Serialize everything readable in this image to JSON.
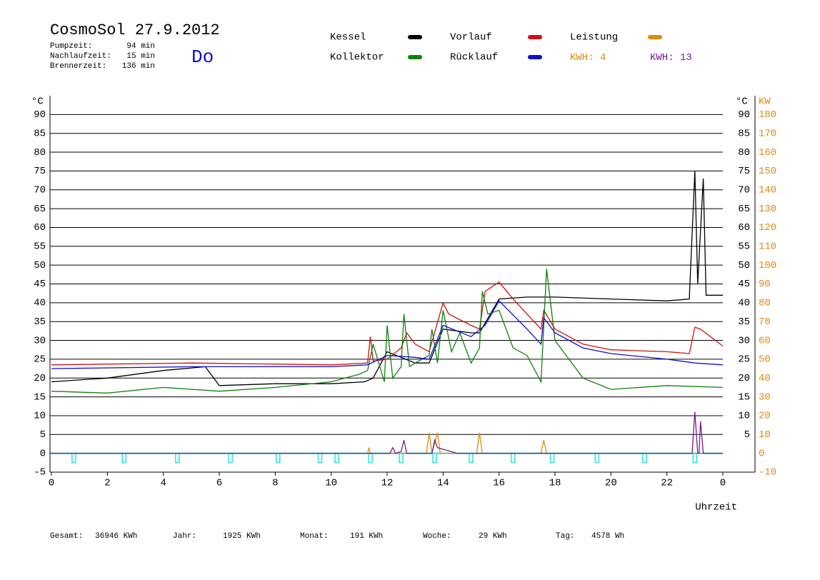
{
  "header": {
    "title": "CosmoSol 27.9.2012",
    "day": "Do",
    "stats": [
      {
        "label": "Pumpzeit:",
        "value": "94 min"
      },
      {
        "label": "Nachlaufzeit:",
        "value": "15 min"
      },
      {
        "label": "Brennerzeit:",
        "value": "136 min"
      }
    ]
  },
  "footer": [
    {
      "label": "Gesamt:",
      "value": "36946 KWh"
    },
    {
      "label": "Jahr:",
      "value": "1925 KWh"
    },
    {
      "label": "Monat:",
      "value": "191 KWh"
    },
    {
      "label": "Woche:",
      "value": "29 KWh"
    },
    {
      "label": "Tag:",
      "value": "4578 Wh"
    }
  ],
  "chart_data": {
    "type": "line",
    "xlabel": "Uhrzeit",
    "ylabel": "°C",
    "y2label": "KW",
    "y_right_label": "°C",
    "xlim": [
      0,
      24
    ],
    "xticks": [
      0,
      2,
      4,
      6,
      8,
      10,
      12,
      14,
      16,
      18,
      20,
      22,
      {
        "value": 24,
        "label": "0"
      }
    ],
    "ylim": [
      -5,
      95
    ],
    "yticks": [
      -5,
      0,
      5,
      10,
      15,
      20,
      25,
      30,
      35,
      40,
      45,
      50,
      55,
      60,
      65,
      70,
      75,
      80,
      85,
      90
    ],
    "y2lim": [
      -10,
      190
    ],
    "y2ticks": [
      -10,
      0,
      10,
      20,
      30,
      40,
      50,
      60,
      70,
      80,
      90,
      100,
      110,
      120,
      130,
      140,
      150,
      160,
      170,
      180
    ],
    "grid": true,
    "kwh": [
      {
        "label": "KWH:",
        "value": 4,
        "color": "#e08a10"
      },
      {
        "label": "KWH:",
        "value": 13,
        "color": "#7a1a8a"
      }
    ],
    "pump_color": "#30e0e0",
    "pump_marks": [
      0.8,
      2.6,
      4.5,
      6.4,
      8.1,
      9.6,
      10.2,
      11.4,
      12.5,
      13.7,
      15.0,
      16.5,
      17.9,
      19.5,
      21.2,
      23.0
    ],
    "series": [
      {
        "name": "Kessel",
        "color": "#000000",
        "x": [
          0,
          2,
          4,
          5.5,
          6,
          8,
          10,
          11.2,
          11.5,
          12,
          13,
          13.5,
          14,
          15,
          15.3,
          16,
          17,
          18,
          20,
          22,
          22.8,
          23,
          23.1,
          23.3,
          23.4,
          24
        ],
        "values": [
          19,
          20,
          22,
          23,
          18,
          18.5,
          18.5,
          19,
          20,
          27,
          24,
          24,
          33,
          32,
          32,
          41,
          41.5,
          41.5,
          41,
          40.5,
          41,
          75,
          45,
          73,
          42,
          42
        ]
      },
      {
        "name": "Vorlauf",
        "color": "#d01010",
        "x": [
          0,
          5,
          10,
          11.3,
          11.4,
          11.5,
          12,
          12.5,
          12.7,
          13,
          13.5,
          14,
          14.2,
          15,
          15.3,
          15.5,
          16,
          16.5,
          17.5,
          17.6,
          18,
          19,
          20,
          22,
          22.8,
          23,
          23.2,
          24
        ],
        "values": [
          23.5,
          24,
          23.5,
          24,
          31,
          24.5,
          25,
          28,
          32,
          29,
          27,
          40,
          37,
          34,
          33,
          43,
          45.5,
          41,
          33,
          38,
          33,
          29,
          27.5,
          27,
          26.5,
          33.5,
          33,
          28.5
        ]
      },
      {
        "name": "Leistung",
        "color": "#e08a10",
        "axis": "y2",
        "x": [
          0,
          11.3,
          11.35,
          11.4,
          13.4,
          13.5,
          13.6,
          13.8,
          13.9,
          15.2,
          15.3,
          15.4,
          17.5,
          17.6,
          17.7,
          24
        ],
        "values": [
          0,
          0,
          3,
          0,
          0,
          11,
          0,
          11,
          0,
          0,
          11,
          0,
          0,
          7,
          0,
          0
        ]
      },
      {
        "name": "Kollektor",
        "color": "#108010",
        "x": [
          0,
          2,
          4,
          6,
          8,
          10,
          11,
          11.3,
          11.5,
          11.9,
          12,
          12.2,
          12.5,
          12.6,
          12.8,
          13,
          13.5,
          13.6,
          13.8,
          14,
          14.3,
          14.6,
          15,
          15.3,
          15.4,
          15.6,
          16,
          16.5,
          17,
          17.5,
          17.7,
          18,
          19,
          20,
          22,
          24
        ],
        "values": [
          16.5,
          16,
          17.5,
          16.5,
          17.5,
          19,
          21,
          22,
          29,
          19,
          34,
          20,
          23,
          37,
          23,
          24,
          26,
          33,
          24,
          38,
          27,
          32,
          24,
          28,
          43,
          37,
          38,
          28,
          26,
          19,
          49,
          30,
          20,
          17,
          18,
          17.5
        ]
      },
      {
        "name": "Rücklauf",
        "color": "#1010c8",
        "x": [
          0,
          5,
          10,
          11.3,
          12,
          13,
          13.5,
          14,
          15,
          15.5,
          16,
          17,
          17.5,
          17.6,
          18,
          19,
          20,
          22,
          23,
          24
        ],
        "values": [
          22.5,
          23,
          23,
          23.5,
          26,
          25.5,
          25,
          34,
          31,
          34,
          40.5,
          33,
          29,
          36,
          32,
          28,
          26.5,
          25,
          24,
          23.5
        ]
      },
      {
        "color": "#7a1a8a",
        "axis": "y2",
        "x": [
          0,
          12.1,
          12.2,
          12.3,
          12.5,
          12.6,
          12.7,
          13.6,
          13.7,
          13.8,
          14.5,
          22.9,
          23.0,
          23.1,
          23.15,
          23.2,
          23.3,
          24
        ],
        "values": [
          0,
          0,
          3,
          0,
          1,
          7,
          0,
          0,
          7,
          3,
          0,
          0,
          22,
          0,
          0,
          17,
          0,
          0
        ]
      }
    ]
  }
}
